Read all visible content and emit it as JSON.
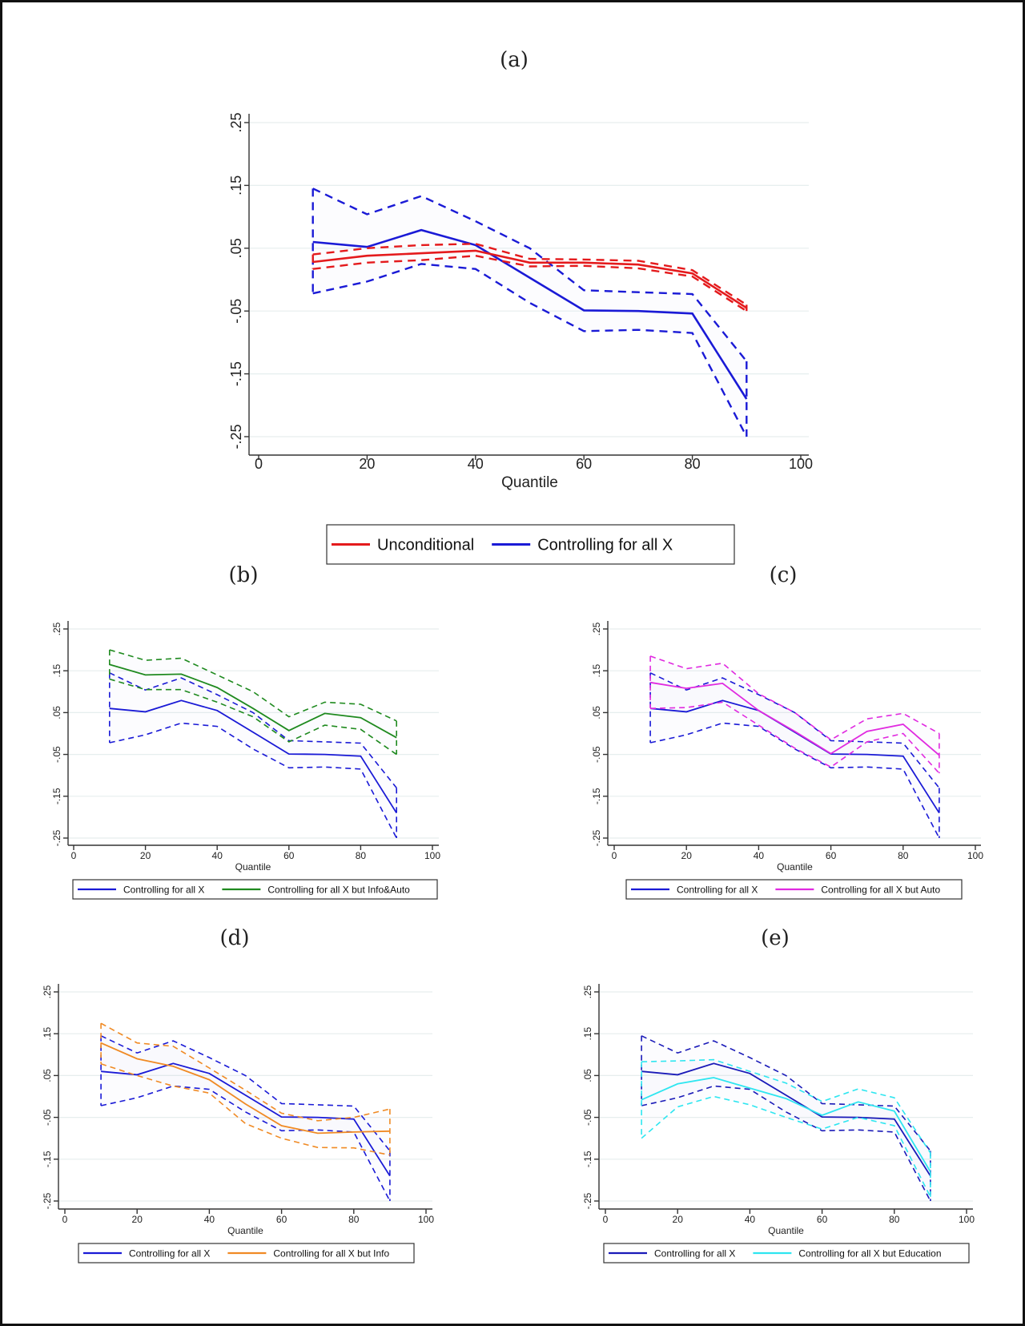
{
  "panel_labels": [
    "(a)",
    "(b)",
    "(c)",
    "(d)",
    "(e)"
  ],
  "chart_data": [
    {
      "id": "a",
      "type": "line",
      "label": "(a)",
      "xlabel": "Quantile",
      "ylabel": "",
      "xlim": [
        0,
        100
      ],
      "ylim": [
        -0.25,
        0.25
      ],
      "xticks": [
        0,
        20,
        40,
        60,
        80,
        100
      ],
      "xtick_labels": [
        "0",
        "20",
        "40",
        "60",
        "80",
        "100"
      ],
      "yticks": [
        -0.25,
        -0.15,
        -0.05,
        0.05,
        0.15,
        0.25
      ],
      "ytick_labels": [
        "-.25",
        "-.15",
        "-.05",
        ".05",
        ".15",
        ".25"
      ],
      "grid": true,
      "legend_position": "bottom",
      "x": [
        10,
        20,
        30,
        40,
        50,
        60,
        70,
        80,
        90
      ],
      "series": [
        {
          "name": "Unconditional",
          "color": "#e41a1c",
          "values": [
            0.028,
            0.038,
            0.042,
            0.046,
            0.027,
            0.027,
            0.024,
            0.01,
            -0.045
          ],
          "upper": [
            0.04,
            0.05,
            0.055,
            0.057,
            0.033,
            0.032,
            0.03,
            0.015,
            -0.04
          ],
          "lower": [
            0.017,
            0.027,
            0.031,
            0.038,
            0.021,
            0.022,
            0.018,
            0.005,
            -0.05
          ]
        },
        {
          "name": "Controlling for all X",
          "color": "#1a1ad6",
          "values": [
            0.06,
            0.052,
            0.079,
            0.055,
            0.003,
            -0.049,
            -0.05,
            -0.054,
            -0.19
          ],
          "upper": [
            0.145,
            0.104,
            0.133,
            0.093,
            0.05,
            -0.017,
            -0.02,
            -0.023,
            -0.13
          ],
          "lower": [
            -0.022,
            -0.003,
            0.025,
            0.017,
            -0.037,
            -0.082,
            -0.08,
            -0.085,
            -0.25
          ]
        }
      ]
    },
    {
      "id": "b",
      "type": "line",
      "label": "(b)",
      "xlabel": "Quantile",
      "ylabel": "",
      "xlim": [
        0,
        100
      ],
      "ylim": [
        -0.25,
        0.25
      ],
      "xticks": [
        0,
        20,
        40,
        60,
        80,
        100
      ],
      "xtick_labels": [
        "0",
        "20",
        "40",
        "60",
        "80",
        "100"
      ],
      "yticks": [
        -0.25,
        -0.15,
        -0.05,
        0.05,
        0.15,
        0.25
      ],
      "ytick_labels": [
        "-.25",
        "-.15",
        "-.05",
        ".05",
        ".15",
        ".25"
      ],
      "grid": true,
      "legend_position": "bottom",
      "x": [
        10,
        20,
        30,
        40,
        50,
        60,
        70,
        80,
        90
      ],
      "series": [
        {
          "name": "Controlling for all X",
          "color": "#1a1ad6",
          "values": [
            0.06,
            0.052,
            0.079,
            0.055,
            0.003,
            -0.049,
            -0.05,
            -0.054,
            -0.19
          ],
          "upper": [
            0.145,
            0.104,
            0.133,
            0.093,
            0.05,
            -0.017,
            -0.02,
            -0.023,
            -0.13
          ],
          "lower": [
            -0.022,
            -0.003,
            0.025,
            0.017,
            -0.037,
            -0.082,
            -0.08,
            -0.085,
            -0.25
          ]
        },
        {
          "name": "Controlling for all X but Info&Auto",
          "color": "#1f8a1f",
          "values": [
            0.165,
            0.14,
            0.142,
            0.11,
            0.06,
            0.007,
            0.048,
            0.038,
            -0.01
          ],
          "upper": [
            0.2,
            0.175,
            0.18,
            0.14,
            0.1,
            0.04,
            0.075,
            0.07,
            0.03
          ],
          "lower": [
            0.13,
            0.105,
            0.105,
            0.075,
            0.04,
            -0.02,
            0.02,
            0.01,
            -0.05
          ]
        }
      ]
    },
    {
      "id": "c",
      "type": "line",
      "label": "(c)",
      "xlabel": "Quantile",
      "ylabel": "",
      "xlim": [
        0,
        100
      ],
      "ylim": [
        -0.25,
        0.25
      ],
      "xticks": [
        0,
        20,
        40,
        60,
        80,
        100
      ],
      "xtick_labels": [
        "0",
        "20",
        "40",
        "60",
        "80",
        "100"
      ],
      "yticks": [
        -0.25,
        -0.15,
        -0.05,
        0.05,
        0.15,
        0.25
      ],
      "ytick_labels": [
        "-.25",
        "-.15",
        "-.05",
        ".05",
        ".15",
        ".25"
      ],
      "grid": true,
      "legend_position": "bottom",
      "x": [
        10,
        20,
        30,
        40,
        50,
        60,
        70,
        80,
        90
      ],
      "series": [
        {
          "name": "Controlling for all X",
          "color": "#1a1ad6",
          "values": [
            0.06,
            0.052,
            0.079,
            0.055,
            0.003,
            -0.049,
            -0.05,
            -0.054,
            -0.19
          ],
          "upper": [
            0.145,
            0.104,
            0.133,
            0.093,
            0.05,
            -0.017,
            -0.02,
            -0.023,
            -0.13
          ],
          "lower": [
            -0.022,
            -0.003,
            0.025,
            0.017,
            -0.037,
            -0.082,
            -0.08,
            -0.085,
            -0.25
          ]
        },
        {
          "name": "Controlling for all X but Auto",
          "color": "#e02ae0",
          "values": [
            0.122,
            0.108,
            0.12,
            0.055,
            0.005,
            -0.048,
            0.005,
            0.022,
            -0.052
          ],
          "upper": [
            0.185,
            0.155,
            0.168,
            0.095,
            0.05,
            -0.015,
            0.035,
            0.048,
            0.0
          ],
          "lower": [
            0.06,
            0.062,
            0.075,
            0.02,
            -0.035,
            -0.08,
            -0.02,
            0.0,
            -0.095
          ]
        }
      ]
    },
    {
      "id": "d",
      "type": "line",
      "label": "(d)",
      "xlabel": "Quantile",
      "ylabel": "",
      "xlim": [
        0,
        100
      ],
      "ylim": [
        -0.25,
        0.25
      ],
      "xticks": [
        0,
        20,
        40,
        60,
        80,
        100
      ],
      "xtick_labels": [
        "0",
        "20",
        "40",
        "60",
        "80",
        "100"
      ],
      "yticks": [
        -0.25,
        -0.15,
        -0.05,
        0.05,
        0.15,
        0.25
      ],
      "ytick_labels": [
        "-.25",
        "-.15",
        "-.05",
        ".05",
        ".15",
        ".25"
      ],
      "grid": true,
      "legend_position": "bottom",
      "x": [
        10,
        20,
        30,
        40,
        50,
        60,
        70,
        80,
        90
      ],
      "series": [
        {
          "name": "Controlling for all X",
          "color": "#1a1ad6",
          "values": [
            0.06,
            0.052,
            0.079,
            0.055,
            0.003,
            -0.049,
            -0.05,
            -0.054,
            -0.19
          ],
          "upper": [
            0.145,
            0.104,
            0.133,
            0.093,
            0.05,
            -0.017,
            -0.02,
            -0.023,
            -0.13
          ],
          "lower": [
            -0.022,
            -0.003,
            0.025,
            0.017,
            -0.037,
            -0.082,
            -0.08,
            -0.085,
            -0.25
          ]
        },
        {
          "name": "Controlling for all X but Info",
          "color": "#f08a24",
          "values": [
            0.128,
            0.09,
            0.072,
            0.04,
            -0.018,
            -0.07,
            -0.088,
            -0.085,
            -0.083
          ],
          "upper": [
            0.175,
            0.128,
            0.12,
            0.068,
            0.015,
            -0.04,
            -0.058,
            -0.05,
            -0.03
          ],
          "lower": [
            0.078,
            0.05,
            0.025,
            0.008,
            -0.065,
            -0.1,
            -0.122,
            -0.123,
            -0.14
          ]
        }
      ]
    },
    {
      "id": "e",
      "type": "line",
      "label": "(e)",
      "xlabel": "Quantile",
      "ylabel": "",
      "xlim": [
        0,
        100
      ],
      "ylim": [
        -0.25,
        0.25
      ],
      "xticks": [
        0,
        20,
        40,
        60,
        80,
        100
      ],
      "xtick_labels": [
        "0",
        "20",
        "40",
        "60",
        "80",
        "100"
      ],
      "yticks": [
        -0.25,
        -0.15,
        -0.05,
        0.05,
        0.15,
        0.25
      ],
      "ytick_labels": [
        "-.25",
        "-.15",
        "-.05",
        ".05",
        ".15",
        ".25"
      ],
      "grid": true,
      "legend_position": "bottom",
      "x": [
        10,
        20,
        30,
        40,
        50,
        60,
        70,
        80,
        90
      ],
      "series": [
        {
          "name": "Controlling for all X",
          "color": "#1a1ab8",
          "values": [
            0.06,
            0.052,
            0.079,
            0.055,
            0.003,
            -0.049,
            -0.05,
            -0.054,
            -0.19
          ],
          "upper": [
            0.145,
            0.104,
            0.133,
            0.093,
            0.05,
            -0.017,
            -0.02,
            -0.023,
            -0.13
          ],
          "lower": [
            -0.022,
            -0.003,
            0.025,
            0.017,
            -0.037,
            -0.082,
            -0.08,
            -0.085,
            -0.25
          ]
        },
        {
          "name": "Controlling for all X but Education",
          "color": "#2ee6f0",
          "values": [
            -0.008,
            0.03,
            0.045,
            0.02,
            -0.005,
            -0.045,
            -0.013,
            -0.035,
            -0.18
          ],
          "upper": [
            0.083,
            0.085,
            0.088,
            0.06,
            0.032,
            -0.012,
            0.018,
            -0.003,
            -0.135
          ],
          "lower": [
            -0.1,
            -0.025,
            0.0,
            -0.02,
            -0.05,
            -0.078,
            -0.05,
            -0.07,
            -0.24
          ]
        }
      ]
    }
  ]
}
